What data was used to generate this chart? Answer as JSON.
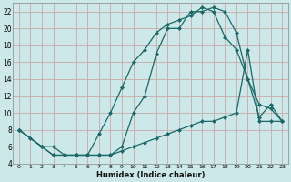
{
  "xlabel": "Humidex (Indice chaleur)",
  "bg_color": "#cce8e8",
  "grid_color": "#c8a8a8",
  "line_color": "#1a6868",
  "xlim": [
    -0.5,
    23.5
  ],
  "ylim": [
    4,
    23
  ],
  "yticks": [
    4,
    6,
    8,
    10,
    12,
    14,
    16,
    18,
    20,
    22
  ],
  "xticks": [
    0,
    1,
    2,
    3,
    4,
    5,
    6,
    7,
    8,
    9,
    10,
    11,
    12,
    13,
    14,
    15,
    16,
    17,
    18,
    19,
    20,
    21,
    22,
    23
  ],
  "line1_x": [
    0,
    1,
    2,
    3,
    4,
    5,
    6,
    7,
    8,
    9,
    10,
    11,
    12,
    13,
    14,
    15,
    16,
    17,
    18,
    19,
    20,
    21,
    22,
    23
  ],
  "line1_y": [
    8,
    7,
    6,
    6,
    5,
    5,
    5,
    5,
    5,
    6,
    10,
    12,
    17,
    20,
    20,
    22,
    22,
    22.5,
    22,
    19.5,
    14,
    11,
    10.5,
    9
  ],
  "line2_x": [
    0,
    2,
    3,
    4,
    5,
    6,
    7,
    8,
    9,
    10,
    11,
    12,
    13,
    14,
    15,
    16,
    17,
    18,
    19,
    20,
    21,
    22,
    23
  ],
  "line2_y": [
    8,
    6,
    5,
    5,
    5,
    5,
    7.5,
    10,
    13,
    16,
    17.5,
    19.5,
    20.5,
    21,
    21.5,
    22.5,
    22,
    19,
    17.5,
    14,
    9.5,
    11,
    9
  ],
  "line3_x": [
    0,
    2,
    3,
    4,
    5,
    6,
    7,
    8,
    9,
    10,
    11,
    12,
    13,
    14,
    15,
    16,
    17,
    18,
    19,
    20,
    21,
    22,
    23
  ],
  "line3_y": [
    8,
    6,
    5,
    5,
    5,
    5,
    5,
    5,
    5.5,
    6,
    6.5,
    7,
    7.5,
    8,
    8.5,
    9,
    9,
    9.5,
    10,
    17.5,
    9,
    9,
    9
  ]
}
